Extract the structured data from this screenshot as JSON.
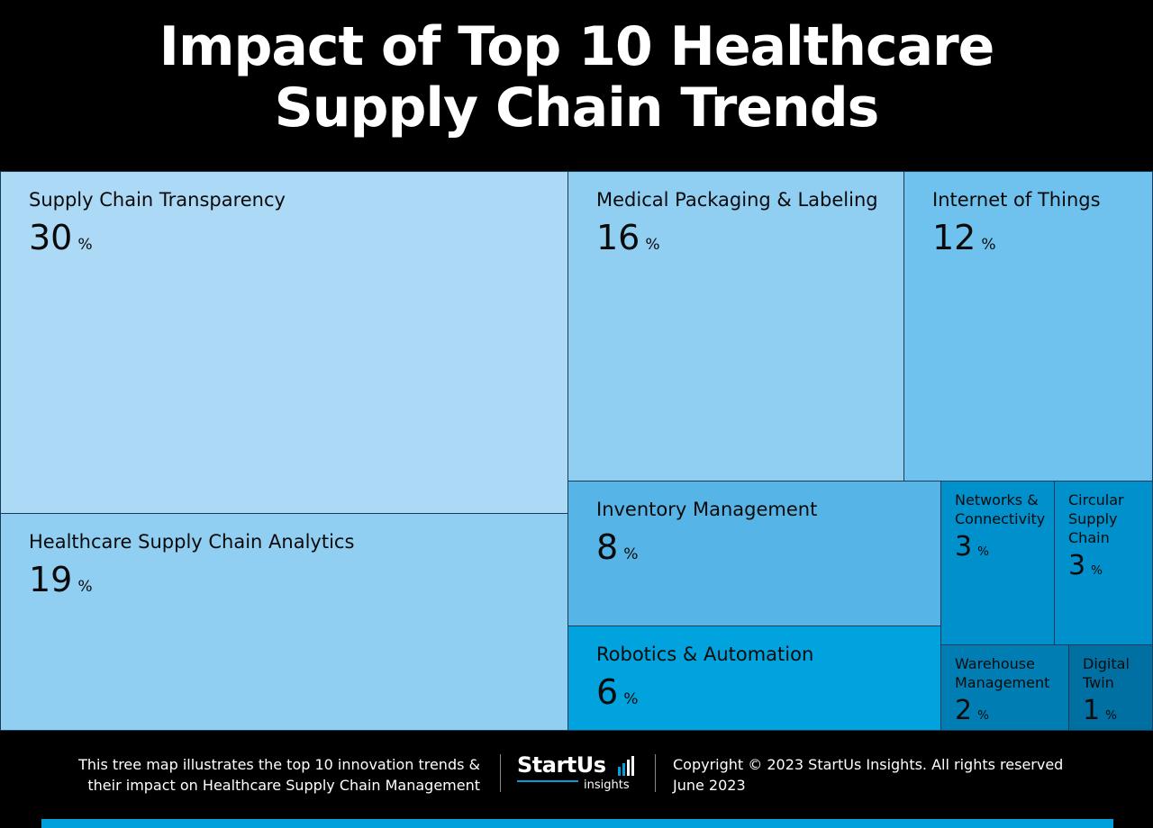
{
  "title": {
    "line1": "Impact of Top 10 Healthcare",
    "line2": "Supply Chain Trends"
  },
  "chart_data": {
    "type": "treemap",
    "unit": "%",
    "items": [
      {
        "label": "Supply Chain Transparency",
        "value": 30,
        "color": "#acd9f5"
      },
      {
        "label": "Healthcare Supply Chain Analytics",
        "value": 19,
        "color": "#90cef2"
      },
      {
        "label": "Medical Packaging & Labeling",
        "value": 16,
        "color": "#90cef2"
      },
      {
        "label": "Internet of Things",
        "value": 12,
        "color": "#70c2ee"
      },
      {
        "label": "Inventory Management",
        "value": 8,
        "color": "#56b5e6"
      },
      {
        "label": "Robotics & Automation",
        "value": 6,
        "color": "#00a3dd"
      },
      {
        "label": "Networks & Connectivity",
        "value": 3,
        "color": "#0090cc"
      },
      {
        "label": "Circular Supply Chain",
        "value": 3,
        "color": "#0090cc"
      },
      {
        "label": "Warehouse Management",
        "value": 2,
        "color": "#007eb4"
      },
      {
        "label": "Digital Twin",
        "value": 1,
        "color": "#0070a2"
      }
    ]
  },
  "footer": {
    "description_line1": "This tree map illustrates the top 10 innovation trends &",
    "description_line2": "their impact on Healthcare Supply Chain Management",
    "logo_brand": "StartUs",
    "logo_sub": "insights",
    "copyright_line1": "Copyright © 2023 StartUs Insights. All rights reserved",
    "copyright_line2": "June 2023",
    "accent_color": "#00a0dc"
  }
}
